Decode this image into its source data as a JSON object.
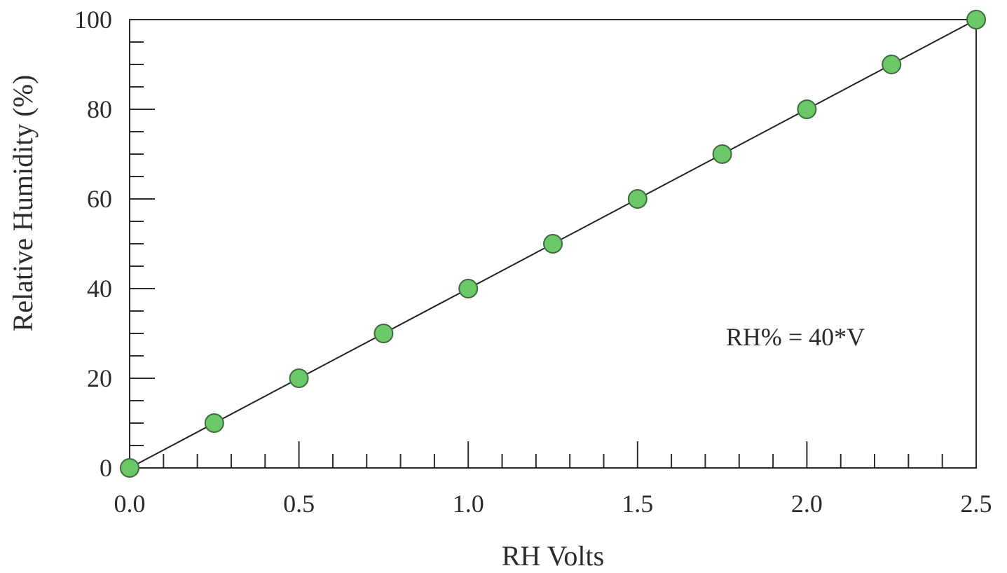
{
  "chart_data": {
    "type": "scatter",
    "title": "",
    "xlabel": "RH Volts",
    "ylabel": "Relative Humidity (%)",
    "xlim": [
      0,
      2.5
    ],
    "ylim": [
      0,
      100
    ],
    "xticks": [
      "0.0",
      "0.5",
      "1.0",
      "1.5",
      "2.0",
      "2.5"
    ],
    "yticks": [
      "0",
      "20",
      "40",
      "60",
      "80",
      "100"
    ],
    "x": [
      0,
      0.25,
      0.5,
      0.75,
      1.0,
      1.25,
      1.5,
      1.75,
      2.0,
      2.25,
      2.5
    ],
    "y": [
      0,
      10,
      20,
      30,
      40,
      50,
      60,
      70,
      80,
      90,
      100
    ],
    "fit_line": {
      "x": [
        0,
        2.5
      ],
      "y": [
        0,
        100
      ]
    },
    "annotation": "RH% = 40*V",
    "grid": false,
    "marker_color": "#6cc96a",
    "marker_edge_color": "#3e6b3d",
    "line_color": "#222222"
  }
}
